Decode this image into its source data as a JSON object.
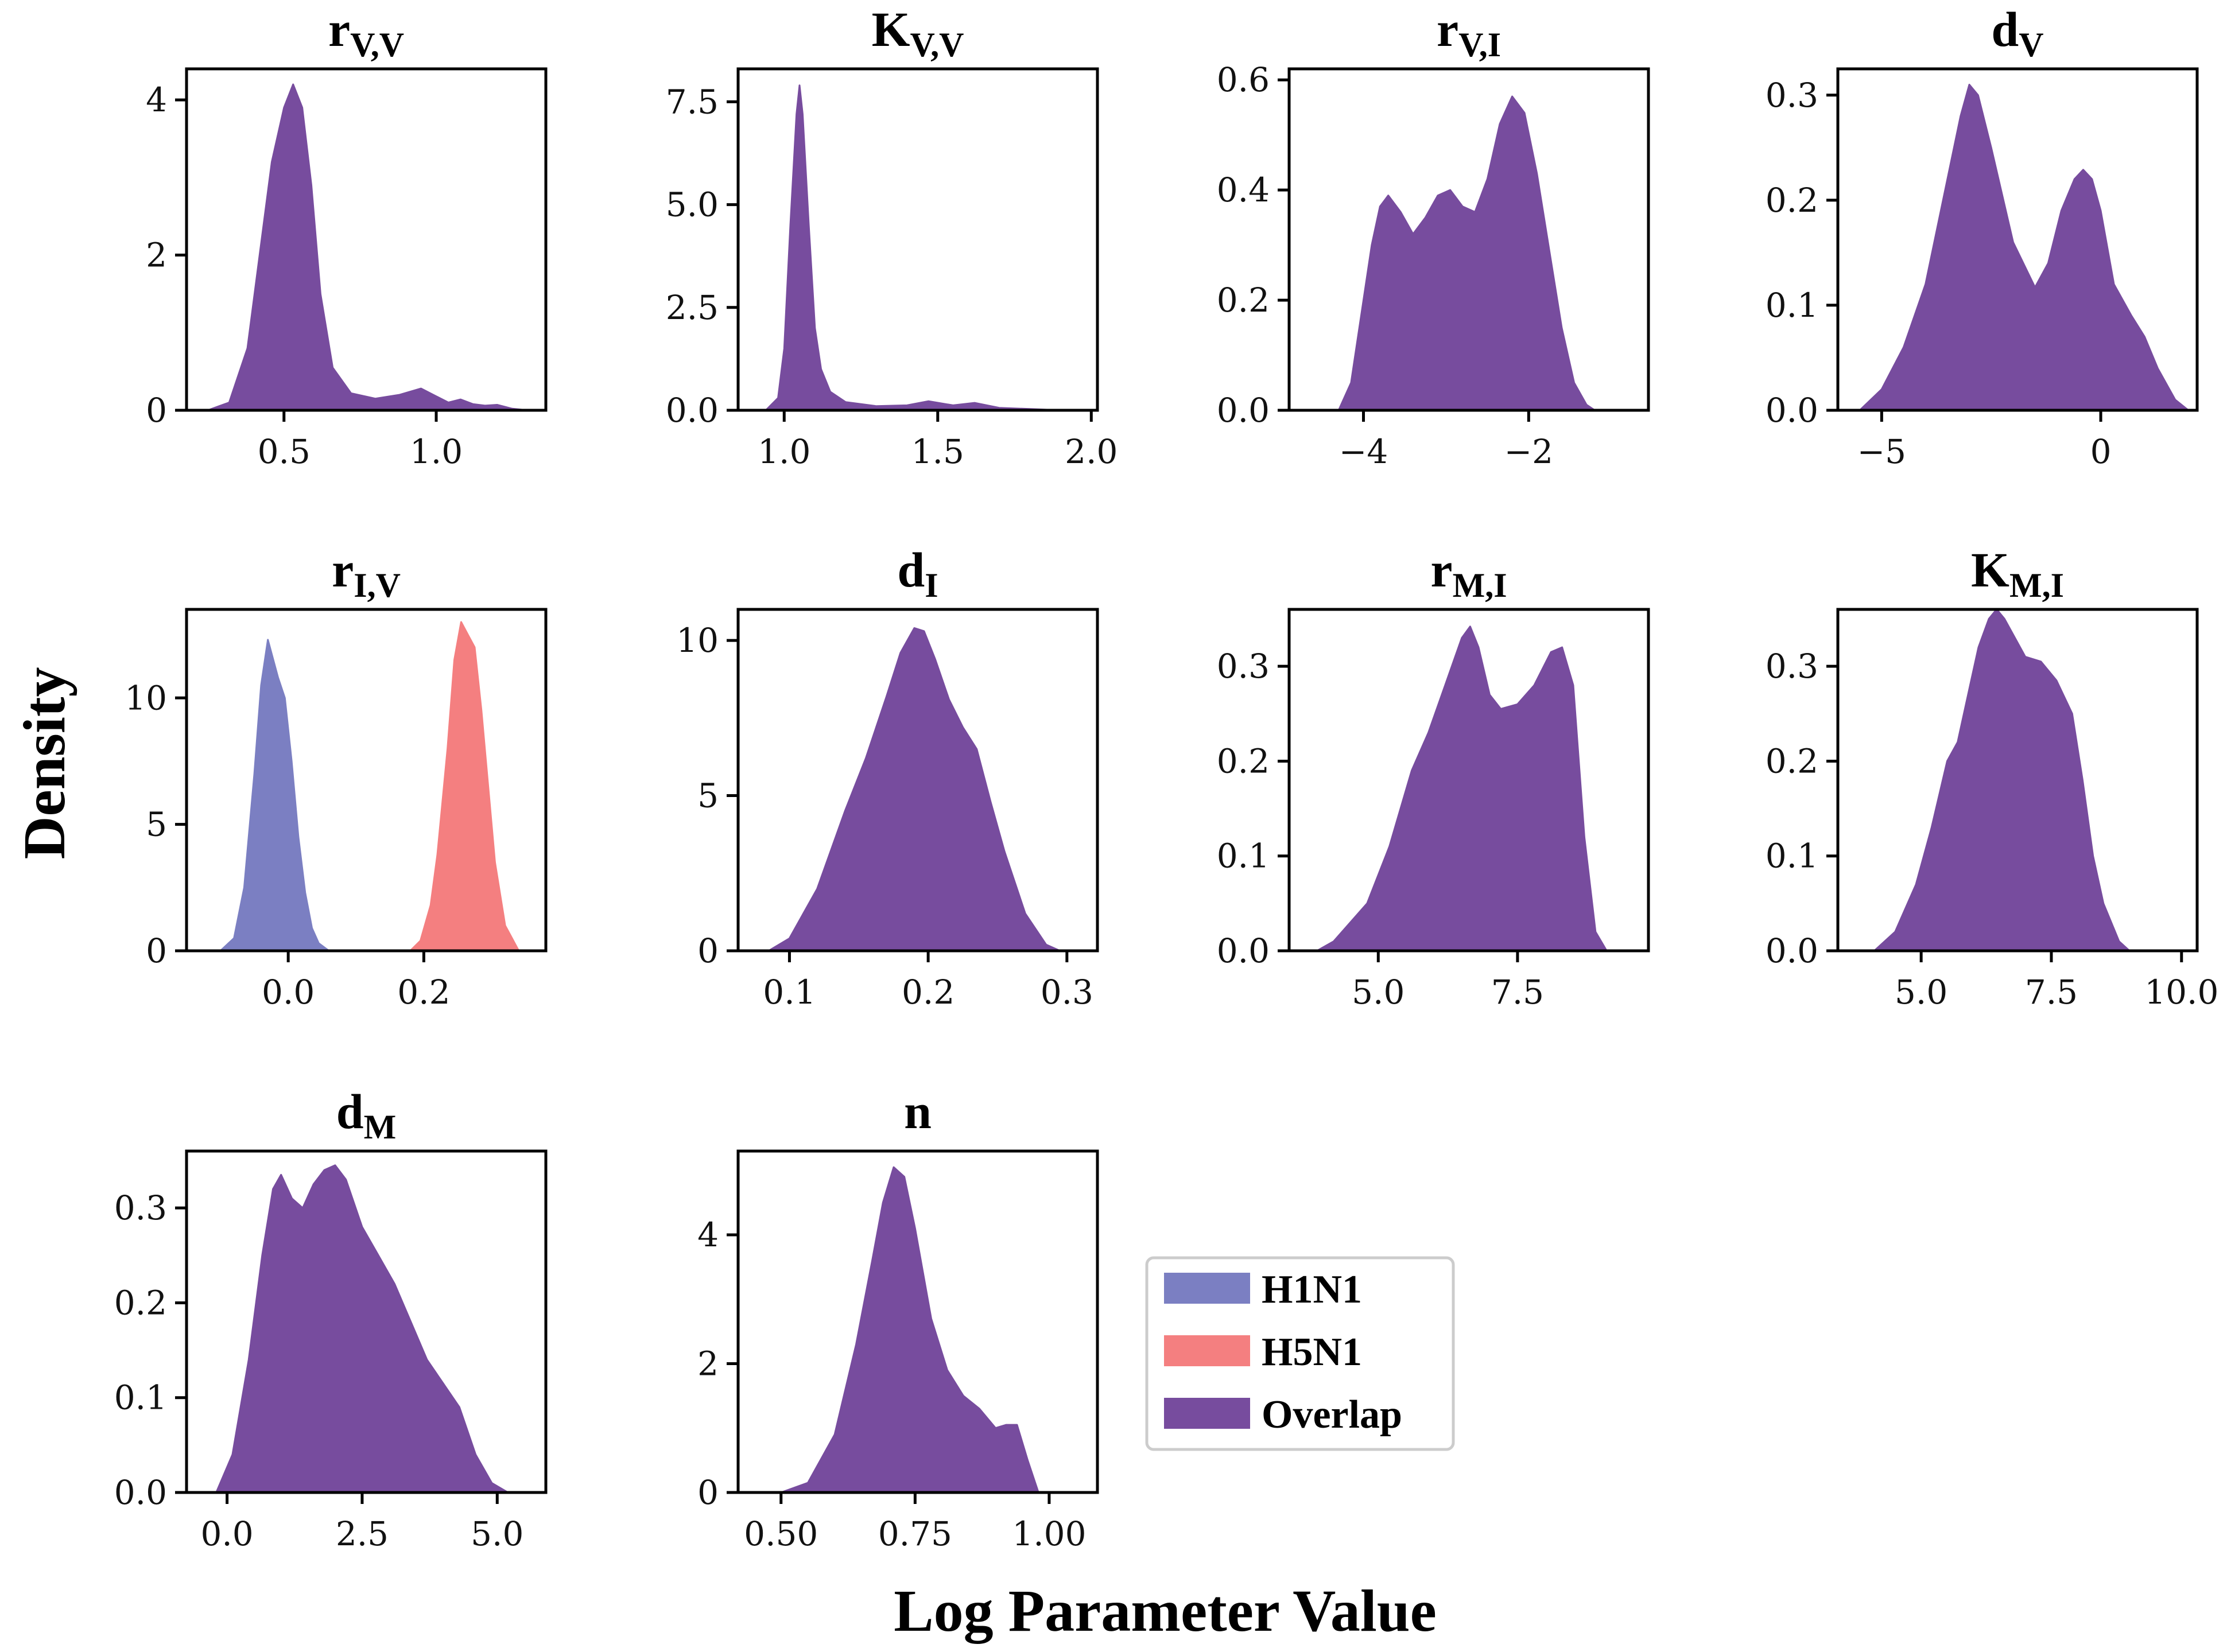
{
  "figure": {
    "ylabel": "Density",
    "xlabel": "Log Parameter Value"
  },
  "colors": {
    "H1N1": "#7b7fc2",
    "H5N1": "#f47f80",
    "Overlap": "#774c9e",
    "axis": "#000000"
  },
  "legend": {
    "placement": "center (row 3, column 3)",
    "entries": [
      {
        "label": "H1N1",
        "color": "#7b7fc2"
      },
      {
        "label": "H5N1",
        "color": "#f47f80"
      },
      {
        "label": "Overlap",
        "color": "#774c9e"
      }
    ]
  },
  "chart_data": [
    {
      "id": "rVV",
      "type": "area",
      "title_main": "r",
      "title_sub": "V,V",
      "xlim": [
        0.18,
        1.36
      ],
      "ylim": [
        0,
        4.4
      ],
      "xticks": [
        0.5,
        1.0
      ],
      "xtick_labels": [
        "0.5",
        "1.0"
      ],
      "yticks": [
        0,
        2,
        4
      ],
      "ytick_labels": [
        "0",
        "2",
        "4"
      ],
      "series": [
        {
          "name": "Overlap",
          "x": [
            0.25,
            0.32,
            0.38,
            0.42,
            0.46,
            0.5,
            0.53,
            0.56,
            0.59,
            0.62,
            0.66,
            0.72,
            0.8,
            0.88,
            0.95,
            1.0,
            1.04,
            1.08,
            1.12,
            1.16,
            1.2,
            1.25,
            1.3
          ],
          "y": [
            0.0,
            0.1,
            0.8,
            2.0,
            3.2,
            3.9,
            4.2,
            3.9,
            2.9,
            1.5,
            0.55,
            0.22,
            0.15,
            0.2,
            0.28,
            0.18,
            0.1,
            0.14,
            0.08,
            0.06,
            0.07,
            0.02,
            0.0
          ]
        }
      ]
    },
    {
      "id": "KVV",
      "type": "area",
      "title_main": "K",
      "title_sub": "V,V",
      "xlim": [
        0.85,
        2.02
      ],
      "ylim": [
        0,
        8.3
      ],
      "xticks": [
        1.0,
        1.5,
        2.0
      ],
      "xtick_labels": [
        "1.0",
        "1.5",
        "2.0"
      ],
      "yticks": [
        0,
        2.5,
        5,
        7.5
      ],
      "ytick_labels": [
        "0.0",
        "2.5",
        "5.0",
        "7.5"
      ],
      "series": [
        {
          "name": "Overlap",
          "x": [
            0.94,
            0.98,
            1.0,
            1.02,
            1.04,
            1.05,
            1.06,
            1.08,
            1.1,
            1.12,
            1.15,
            1.2,
            1.3,
            1.4,
            1.47,
            1.55,
            1.62,
            1.7,
            1.8,
            1.9
          ],
          "y": [
            0.0,
            0.3,
            1.5,
            4.5,
            7.2,
            7.9,
            7.2,
            4.5,
            2.0,
            1.0,
            0.45,
            0.2,
            0.1,
            0.12,
            0.22,
            0.12,
            0.18,
            0.06,
            0.03,
            0.0
          ]
        }
      ]
    },
    {
      "id": "rVI",
      "type": "area",
      "title_main": "r",
      "title_sub": "V,I",
      "xlim": [
        -4.9,
        -0.55
      ],
      "ylim": [
        0,
        0.62
      ],
      "xticks": [
        -4,
        -2
      ],
      "xtick_labels": [
        "−4",
        "−2"
      ],
      "yticks": [
        0,
        0.2,
        0.4,
        0.6
      ],
      "ytick_labels": [
        "0.0",
        "0.2",
        "0.4",
        "0.6"
      ],
      "series": [
        {
          "name": "Overlap",
          "x": [
            -4.3,
            -4.15,
            -4.0,
            -3.9,
            -3.8,
            -3.7,
            -3.55,
            -3.4,
            -3.25,
            -3.1,
            -2.95,
            -2.8,
            -2.65,
            -2.5,
            -2.35,
            -2.2,
            -2.05,
            -1.9,
            -1.75,
            -1.6,
            -1.45,
            -1.3,
            -1.2
          ],
          "y": [
            0.0,
            0.05,
            0.2,
            0.3,
            0.37,
            0.39,
            0.36,
            0.32,
            0.35,
            0.39,
            0.4,
            0.37,
            0.36,
            0.42,
            0.52,
            0.57,
            0.54,
            0.43,
            0.29,
            0.15,
            0.05,
            0.01,
            0.0
          ]
        }
      ]
    },
    {
      "id": "dV",
      "type": "area",
      "title_main": "d",
      "title_sub": "V",
      "xlim": [
        -6.0,
        2.2
      ],
      "ylim": [
        0,
        0.325
      ],
      "xticks": [
        -5,
        0
      ],
      "xtick_labels": [
        "−5",
        "0"
      ],
      "yticks": [
        0,
        0.1,
        0.2,
        0.3
      ],
      "ytick_labels": [
        "0.0",
        "0.1",
        "0.2",
        "0.3"
      ],
      "series": [
        {
          "name": "Overlap",
          "x": [
            -5.5,
            -5.0,
            -4.5,
            -4.0,
            -3.5,
            -3.2,
            -3.0,
            -2.8,
            -2.5,
            -2.0,
            -1.5,
            -1.2,
            -0.9,
            -0.6,
            -0.4,
            -0.2,
            0.0,
            0.3,
            0.7,
            1.0,
            1.3,
            1.7,
            2.0
          ],
          "y": [
            0.0,
            0.02,
            0.06,
            0.12,
            0.22,
            0.28,
            0.31,
            0.3,
            0.25,
            0.16,
            0.117,
            0.14,
            0.19,
            0.22,
            0.229,
            0.22,
            0.19,
            0.12,
            0.09,
            0.07,
            0.04,
            0.01,
            0.0
          ]
        }
      ]
    },
    {
      "id": "rIV",
      "type": "area",
      "title_main": "r",
      "title_sub": "I,V",
      "xlim": [
        -0.15,
        0.38
      ],
      "ylim": [
        0,
        13.5
      ],
      "xticks": [
        0.0,
        0.2
      ],
      "xtick_labels": [
        "0.0",
        "0.2"
      ],
      "yticks": [
        0,
        5,
        10
      ],
      "ytick_labels": [
        "0",
        "5",
        "10"
      ],
      "series": [
        {
          "name": "H1N1",
          "x": [
            -0.1,
            -0.08,
            -0.065,
            -0.05,
            -0.04,
            -0.03,
            -0.025,
            -0.015,
            -0.005,
            0.005,
            0.015,
            0.025,
            0.035,
            0.045,
            0.06
          ],
          "y": [
            0.0,
            0.5,
            2.5,
            7.0,
            10.5,
            12.3,
            11.8,
            10.8,
            10.0,
            7.5,
            4.5,
            2.3,
            0.9,
            0.3,
            0.0
          ]
        },
        {
          "name": "H5N1",
          "x": [
            0.18,
            0.195,
            0.21,
            0.22,
            0.235,
            0.245,
            0.255,
            0.265,
            0.275,
            0.285,
            0.295,
            0.305,
            0.32,
            0.34
          ],
          "y": [
            0.0,
            0.4,
            1.8,
            3.8,
            8.0,
            11.5,
            13.0,
            12.5,
            12.0,
            9.5,
            6.5,
            3.5,
            1.0,
            0.0
          ]
        }
      ]
    },
    {
      "id": "dI",
      "type": "area",
      "title_main": "d",
      "title_sub": "I",
      "xlim": [
        0.063,
        0.322
      ],
      "ylim": [
        0,
        11.0
      ],
      "xticks": [
        0.1,
        0.2,
        0.3
      ],
      "xtick_labels": [
        "0.1",
        "0.2",
        "0.3"
      ],
      "yticks": [
        0,
        5,
        10
      ],
      "ytick_labels": [
        "0",
        "5",
        "10"
      ],
      "series": [
        {
          "name": "Overlap",
          "x": [
            0.085,
            0.1,
            0.12,
            0.14,
            0.155,
            0.17,
            0.18,
            0.19,
            0.197,
            0.205,
            0.215,
            0.225,
            0.235,
            0.245,
            0.255,
            0.27,
            0.285,
            0.295
          ],
          "y": [
            0.0,
            0.4,
            2.0,
            4.5,
            6.2,
            8.2,
            9.6,
            10.4,
            10.3,
            9.4,
            8.1,
            7.2,
            6.5,
            4.8,
            3.2,
            1.2,
            0.2,
            0.0
          ]
        }
      ]
    },
    {
      "id": "rMI",
      "type": "area",
      "title_main": "r",
      "title_sub": "M,I",
      "xlim": [
        3.4,
        9.85
      ],
      "ylim": [
        0,
        0.36
      ],
      "xticks": [
        5.0,
        7.5
      ],
      "xtick_labels": [
        "5.0",
        "7.5"
      ],
      "yticks": [
        0,
        0.1,
        0.2,
        0.3
      ],
      "ytick_labels": [
        "0.0",
        "0.1",
        "0.2",
        "0.3"
      ],
      "series": [
        {
          "name": "Overlap",
          "x": [
            3.9,
            4.2,
            4.5,
            4.8,
            5.2,
            5.6,
            5.9,
            6.2,
            6.5,
            6.65,
            6.8,
            7.0,
            7.2,
            7.5,
            7.8,
            8.1,
            8.3,
            8.5,
            8.7,
            8.9,
            9.1
          ],
          "y": [
            0.0,
            0.01,
            0.03,
            0.05,
            0.11,
            0.19,
            0.23,
            0.28,
            0.33,
            0.342,
            0.32,
            0.27,
            0.255,
            0.26,
            0.28,
            0.315,
            0.32,
            0.28,
            0.12,
            0.02,
            0.0
          ]
        }
      ]
    },
    {
      "id": "KMI",
      "type": "area",
      "title_main": "K",
      "title_sub": "M,I",
      "xlim": [
        3.4,
        10.3
      ],
      "ylim": [
        0,
        0.36
      ],
      "xticks": [
        5.0,
        7.5,
        10.0
      ],
      "xtick_labels": [
        "5.0",
        "7.5",
        "10.0"
      ],
      "yticks": [
        0,
        0.1,
        0.2,
        0.3
      ],
      "ytick_labels": [
        "0.0",
        "0.1",
        "0.2",
        "0.3"
      ],
      "series": [
        {
          "name": "Overlap",
          "x": [
            4.1,
            4.5,
            4.9,
            5.2,
            5.5,
            5.7,
            5.9,
            6.1,
            6.3,
            6.45,
            6.6,
            6.8,
            7.0,
            7.3,
            7.6,
            7.9,
            8.1,
            8.3,
            8.5,
            8.8,
            9.0
          ],
          "y": [
            0.0,
            0.02,
            0.07,
            0.13,
            0.2,
            0.22,
            0.27,
            0.32,
            0.35,
            0.36,
            0.35,
            0.33,
            0.31,
            0.305,
            0.285,
            0.25,
            0.18,
            0.1,
            0.05,
            0.01,
            0.0
          ]
        }
      ]
    },
    {
      "id": "dM",
      "type": "area",
      "title_main": "d",
      "title_sub": "M",
      "xlim": [
        -0.75,
        5.9
      ],
      "ylim": [
        0,
        0.36
      ],
      "xticks": [
        0.0,
        2.5,
        5.0
      ],
      "xtick_labels": [
        "0.0",
        "2.5",
        "5.0"
      ],
      "yticks": [
        0,
        0.1,
        0.2,
        0.3
      ],
      "ytick_labels": [
        "0.0",
        "0.1",
        "0.2",
        "0.3"
      ],
      "series": [
        {
          "name": "Overlap",
          "x": [
            -0.2,
            0.1,
            0.4,
            0.65,
            0.85,
            1.0,
            1.2,
            1.4,
            1.6,
            1.8,
            2.0,
            2.2,
            2.5,
            2.8,
            3.1,
            3.4,
            3.7,
            4.0,
            4.3,
            4.6,
            4.9,
            5.2
          ],
          "y": [
            0.0,
            0.04,
            0.14,
            0.25,
            0.32,
            0.335,
            0.31,
            0.3,
            0.325,
            0.34,
            0.345,
            0.33,
            0.28,
            0.25,
            0.22,
            0.18,
            0.14,
            0.115,
            0.09,
            0.04,
            0.01,
            0.0
          ]
        }
      ]
    },
    {
      "id": "n",
      "type": "area",
      "title_main": "n",
      "title_sub": "",
      "xlim": [
        0.42,
        1.09
      ],
      "ylim": [
        0,
        5.3
      ],
      "xticks": [
        0.5,
        0.75,
        1.0
      ],
      "xtick_labels": [
        "0.50",
        "0.75",
        "1.00"
      ],
      "yticks": [
        0,
        2,
        4
      ],
      "ytick_labels": [
        "0",
        "2",
        "4"
      ],
      "series": [
        {
          "name": "Overlap",
          "x": [
            0.5,
            0.55,
            0.6,
            0.64,
            0.67,
            0.69,
            0.71,
            0.73,
            0.75,
            0.78,
            0.81,
            0.84,
            0.87,
            0.9,
            0.92,
            0.94,
            0.96,
            0.98
          ],
          "y": [
            0.0,
            0.15,
            0.9,
            2.3,
            3.6,
            4.5,
            5.05,
            4.9,
            4.1,
            2.7,
            1.9,
            1.5,
            1.3,
            1.0,
            1.05,
            1.05,
            0.5,
            0.0
          ]
        }
      ]
    }
  ]
}
